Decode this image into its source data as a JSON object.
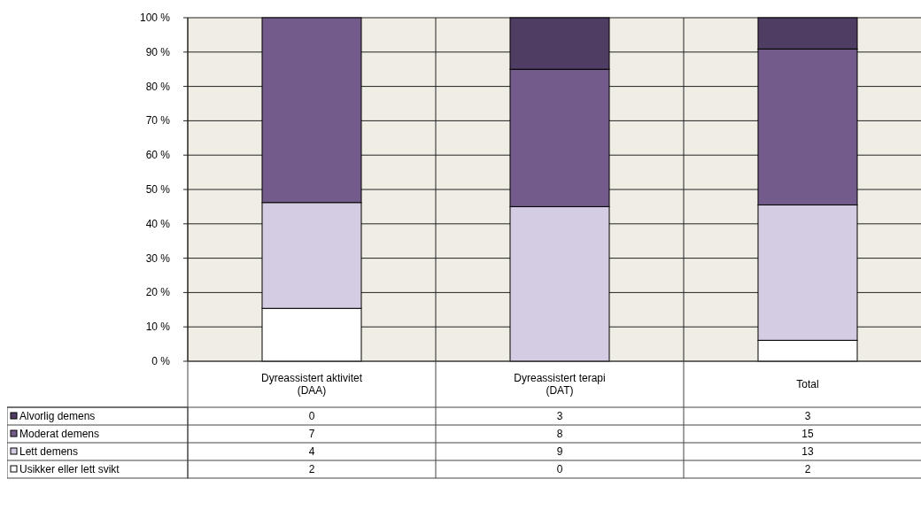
{
  "chart_data": {
    "type": "bar",
    "stacked": true,
    "categories": [
      "Dyreassistert aktivitet\n(DAA)",
      "Dyreassistert terapi\n(DAT)",
      "Total"
    ],
    "series": [
      {
        "name": "Usikker eller lett svikt",
        "color": "#ffffff",
        "values": [
          15.4,
          0,
          6.1
        ]
      },
      {
        "name": "Lett demens",
        "color": "#d4cce2",
        "values": [
          30.8,
          45,
          39.4
        ]
      },
      {
        "name": "Moderat demens",
        "color": "#735b8c",
        "values": [
          53.8,
          40,
          45.4
        ]
      },
      {
        "name": "Alvorlig demens",
        "color": "#4f3d63",
        "values": [
          0,
          15,
          9.1
        ]
      }
    ],
    "annotations": [
      "0",
      "3",
      "3",
      "7",
      "8",
      "15",
      "4",
      "9",
      "13",
      "2",
      "0",
      "2"
    ],
    "ylim": [
      0,
      100
    ],
    "yticks": [
      {
        "value": 0,
        "label": "0 %"
      },
      {
        "value": 10,
        "label": "10 %"
      },
      {
        "value": 20,
        "label": "20 %"
      },
      {
        "value": 30,
        "label": "30 %"
      },
      {
        "value": 40,
        "label": "40 %"
      },
      {
        "value": 50,
        "label": "50 %"
      },
      {
        "value": 60,
        "label": "60 %"
      },
      {
        "value": 70,
        "label": "70 %"
      },
      {
        "value": 80,
        "label": "80 %"
      },
      {
        "value": 90,
        "label": "90 %"
      },
      {
        "value": 100,
        "label": "100 %"
      }
    ],
    "grid": "y",
    "legend": "bottom"
  }
}
